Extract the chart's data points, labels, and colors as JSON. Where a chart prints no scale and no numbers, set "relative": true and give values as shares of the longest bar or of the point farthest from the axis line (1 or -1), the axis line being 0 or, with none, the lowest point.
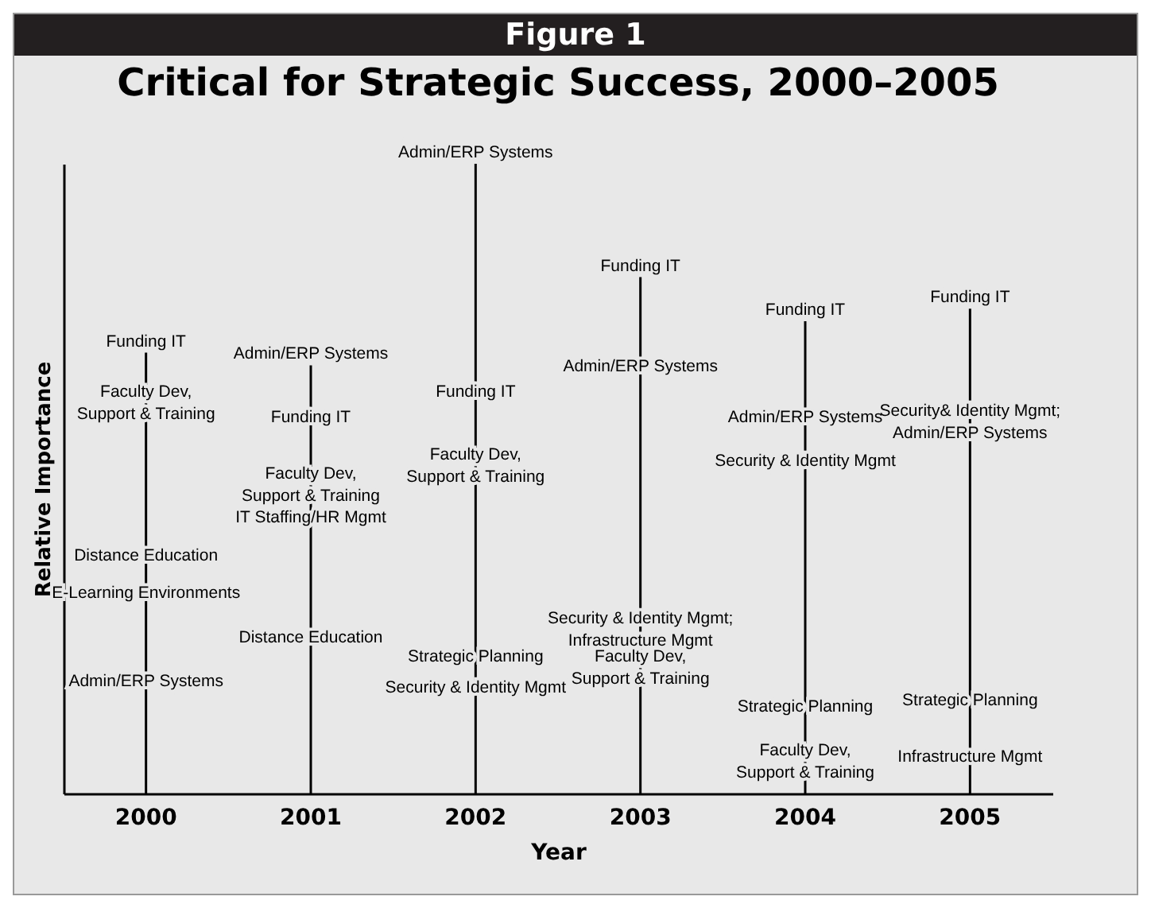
{
  "chart_data": {
    "type": "bar",
    "title": "Critical for Strategic Success, 2000–2005",
    "xlabel": "Year",
    "ylabel": "Relative Importance",
    "relative": true,
    "categories": [
      "2000",
      "2001",
      "2002",
      "2003",
      "2004",
      "2005"
    ],
    "series": [
      {
        "color": "#000000",
        "values": [
          0.7,
          0.68,
          1.0,
          0.82,
          0.75,
          0.77
        ]
      }
    ],
    "annotations": [
      "Figure 1",
      {
        "text": "Funding IT",
        "x": "2000",
        "y": 0.7
      },
      {
        "text": "Faculty Dev,\nSupport & Training",
        "x": "2000",
        "y": 0.62
      },
      {
        "text": "Distance Education",
        "x": "2000",
        "y": 0.36
      },
      {
        "text": "E-Learning Environments",
        "x": "2000",
        "y": 0.3
      },
      {
        "text": "Admin/ERP Systems",
        "x": "2000",
        "y": 0.16
      },
      {
        "text": "Admin/ERP Systems",
        "x": "2001",
        "y": 0.68
      },
      {
        "text": "Funding IT",
        "x": "2001",
        "y": 0.58
      },
      {
        "text": "Faculty Dev,\nSupport & Training",
        "x": "2001",
        "y": 0.49
      },
      {
        "text": "IT Staffing/HR Mgmt",
        "x": "2001",
        "y": 0.42
      },
      {
        "text": "Distance Education",
        "x": "2001",
        "y": 0.23
      },
      {
        "text": "Admin/ERP Systems",
        "x": "2002",
        "y": 1.0
      },
      {
        "text": "Funding IT",
        "x": "2002",
        "y": 0.62
      },
      {
        "text": "Faculty Dev,\nSupport & Training",
        "x": "2002",
        "y": 0.52
      },
      {
        "text": "Strategic Planning",
        "x": "2002",
        "y": 0.2
      },
      {
        "text": "Security & Identity Mgmt",
        "x": "2002",
        "y": 0.15
      },
      {
        "text": "Funding IT",
        "x": "2003",
        "y": 0.82
      },
      {
        "text": "Admin/ERP Systems",
        "x": "2003",
        "y": 0.66
      },
      {
        "text": "Security & Identity Mgmt;\nInfrastructure Mgmt",
        "x": "2003",
        "y": 0.26
      },
      {
        "text": "Faculty Dev,\nSupport & Training",
        "x": "2003",
        "y": 0.2
      },
      {
        "text": "Funding IT",
        "x": "2004",
        "y": 0.75
      },
      {
        "text": "Admin/ERP Systems",
        "x": "2004",
        "y": 0.58
      },
      {
        "text": "Security & Identity Mgmt",
        "x": "2004",
        "y": 0.51
      },
      {
        "text": "Strategic Planning",
        "x": "2004",
        "y": 0.12
      },
      {
        "text": "Faculty Dev,\nSupport & Training",
        "x": "2004",
        "y": 0.05
      },
      {
        "text": "Funding IT",
        "x": "2005",
        "y": 0.77
      },
      {
        "text": "Security& Identity Mgmt;\nAdmin/ERP Systems",
        "x": "2005",
        "y": 0.59
      },
      {
        "text": "Strategic Planning",
        "x": "2005",
        "y": 0.13
      },
      {
        "text": "Infrastructure Mgmt",
        "x": "2005",
        "y": 0.04
      }
    ]
  }
}
